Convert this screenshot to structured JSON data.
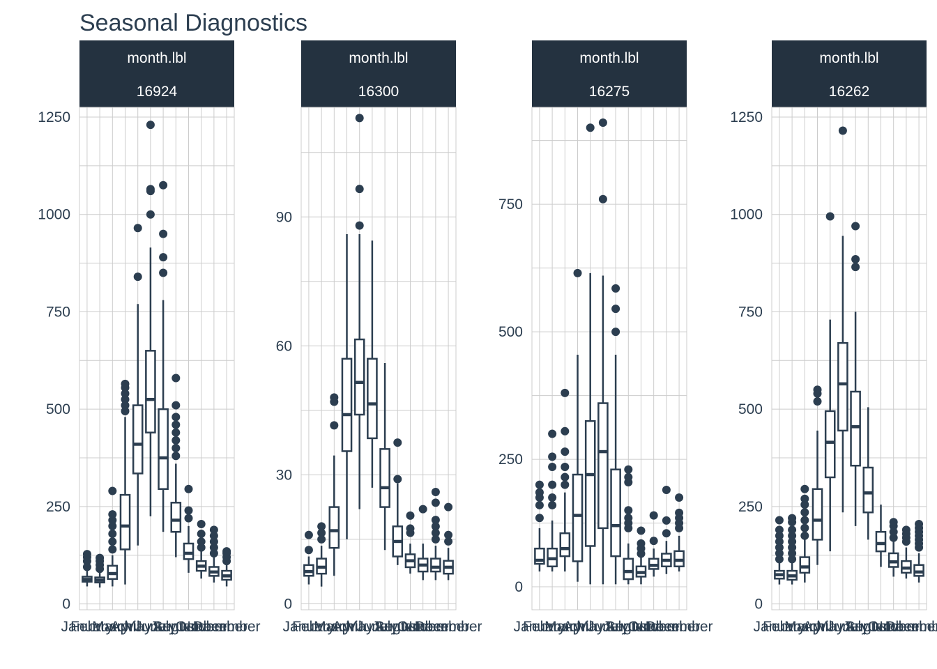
{
  "title": "Seasonal Diagnostics",
  "colors": {
    "ink": "#2c3e50",
    "strip": "#243240",
    "grid": "#cccccc",
    "background": "#ffffff"
  },
  "chart_data": [
    {
      "type": "boxplot",
      "strip": [
        "month.lbl",
        "16924"
      ],
      "ylim": [
        -15,
        1275
      ],
      "yticks": [
        0,
        250,
        500,
        750,
        1000,
        1250
      ],
      "categories": [
        "January",
        "February",
        "March",
        "April",
        "May",
        "June",
        "July",
        "August",
        "September",
        "October",
        "November",
        "December"
      ],
      "boxes": [
        {
          "low": 45,
          "q1": 57,
          "med": 63,
          "q3": 70,
          "high": 85,
          "outliers": [
            95,
            110,
            120,
            128
          ]
        },
        {
          "low": 42,
          "q1": 55,
          "med": 61,
          "q3": 68,
          "high": 82,
          "outliers": [
            90,
            100,
            110,
            118
          ]
        },
        {
          "low": 45,
          "q1": 64,
          "med": 78,
          "q3": 98,
          "high": 125,
          "outliers": [
            140,
            160,
            180,
            200,
            215,
            230,
            290
          ]
        },
        {
          "low": 50,
          "q1": 140,
          "med": 200,
          "q3": 280,
          "high": 480,
          "outliers": [
            495,
            510,
            525,
            540,
            555,
            565
          ]
        },
        {
          "low": 150,
          "q1": 335,
          "med": 410,
          "q3": 510,
          "high": 770,
          "outliers": [
            840,
            965
          ]
        },
        {
          "low": 225,
          "q1": 440,
          "med": 525,
          "q3": 650,
          "high": 915,
          "outliers": [
            1000,
            1060,
            1065,
            1230
          ]
        },
        {
          "low": 185,
          "q1": 295,
          "med": 375,
          "q3": 500,
          "high": 780,
          "outliers": [
            850,
            890,
            950,
            1075
          ]
        },
        {
          "low": 120,
          "q1": 185,
          "med": 215,
          "q3": 260,
          "high": 360,
          "outliers": [
            380,
            400,
            420,
            440,
            460,
            480,
            510,
            580
          ]
        },
        {
          "low": 80,
          "q1": 115,
          "med": 130,
          "q3": 155,
          "high": 200,
          "outliers": [
            220,
            240,
            295
          ]
        },
        {
          "low": 65,
          "q1": 85,
          "med": 97,
          "q3": 110,
          "high": 135,
          "outliers": [
            145,
            160,
            180,
            205
          ]
        },
        {
          "low": 55,
          "q1": 72,
          "med": 82,
          "q3": 95,
          "high": 120,
          "outliers": [
            130,
            145,
            160,
            175,
            190
          ]
        },
        {
          "low": 45,
          "q1": 62,
          "med": 72,
          "q3": 85,
          "high": 105,
          "outliers": [
            110,
            120,
            130,
            135
          ]
        }
      ]
    },
    {
      "type": "boxplot",
      "strip": [
        "month.lbl",
        "16300"
      ],
      "ylim": [
        -1.4,
        115.5
      ],
      "yticks": [
        0,
        30,
        60,
        90
      ],
      "categories": [
        "January",
        "February",
        "March",
        "April",
        "May",
        "June",
        "July",
        "August",
        "September",
        "October",
        "November",
        "December"
      ],
      "boxes": [
        {
          "low": 4.5,
          "q1": 6.5,
          "med": 7.5,
          "q3": 9,
          "high": 11,
          "outliers": [
            12.5,
            16
          ]
        },
        {
          "low": 4,
          "q1": 7,
          "med": 8.5,
          "q3": 10.5,
          "high": 13.5,
          "outliers": [
            15,
            16.5,
            18
          ]
        },
        {
          "low": 6.5,
          "q1": 13,
          "med": 17,
          "q3": 22.5,
          "high": 34.5,
          "outliers": [
            41.5,
            47,
            48
          ]
        },
        {
          "low": 15,
          "q1": 35.5,
          "med": 44,
          "q3": 57,
          "high": 86,
          "outliers": []
        },
        {
          "low": 22,
          "q1": 44,
          "med": 51.5,
          "q3": 61.5,
          "high": 86,
          "outliers": [
            88,
            96.5,
            113
          ]
        },
        {
          "low": 27,
          "q1": 38.5,
          "med": 46.5,
          "q3": 57,
          "high": 84.5,
          "outliers": []
        },
        {
          "low": 12.5,
          "q1": 22.5,
          "med": 27,
          "q3": 36,
          "high": 56,
          "outliers": []
        },
        {
          "low": 9,
          "q1": 11,
          "med": 14.5,
          "q3": 18,
          "high": 28,
          "outliers": [
            29,
            37.5
          ]
        },
        {
          "low": 7,
          "q1": 8.5,
          "med": 10,
          "q3": 11.5,
          "high": 14,
          "outliers": [
            16.5,
            17.5,
            20.5
          ]
        },
        {
          "low": 5.5,
          "q1": 7.5,
          "med": 9,
          "q3": 10.5,
          "high": 14,
          "outliers": [
            22
          ]
        },
        {
          "low": 5.5,
          "q1": 7.5,
          "med": 8.5,
          "q3": 10.5,
          "high": 13.5,
          "outliers": [
            15,
            16.5,
            18,
            19.5,
            23.5,
            26
          ]
        },
        {
          "low": 5.5,
          "q1": 7,
          "med": 8.5,
          "q3": 10,
          "high": 13,
          "outliers": [
            14.5,
            16,
            22.5
          ]
        }
      ]
    },
    {
      "type": "boxplot",
      "strip": [
        "month.lbl",
        "16275"
      ],
      "ylim": [
        -45,
        940
      ],
      "yticks": [
        0,
        250,
        500,
        750
      ],
      "categories": [
        "January",
        "February",
        "March",
        "April",
        "May",
        "June",
        "July",
        "August",
        "September",
        "October",
        "November",
        "December"
      ],
      "boxes": [
        {
          "low": 30,
          "q1": 45,
          "med": 52,
          "q3": 75,
          "high": 115,
          "outliers": [
            135,
            160,
            175,
            185,
            200
          ]
        },
        {
          "low": 30,
          "q1": 40,
          "med": 55,
          "q3": 75,
          "high": 130,
          "outliers": [
            160,
            175,
            200,
            235,
            255,
            300
          ]
        },
        {
          "low": 30,
          "q1": 60,
          "med": 75,
          "q3": 105,
          "high": 185,
          "outliers": [
            200,
            215,
            235,
            265,
            305,
            380
          ]
        },
        {
          "low": 10,
          "q1": 50,
          "med": 140,
          "q3": 220,
          "high": 455,
          "outliers": [
            615
          ]
        },
        {
          "low": 5,
          "q1": 80,
          "med": 220,
          "q3": 325,
          "high": 615,
          "outliers": [
            900
          ]
        },
        {
          "low": 5,
          "q1": 115,
          "med": 265,
          "q3": 360,
          "high": 610,
          "outliers": [
            760,
            910
          ]
        },
        {
          "low": 5,
          "q1": 60,
          "med": 120,
          "q3": 230,
          "high": 455,
          "outliers": [
            500,
            545,
            585
          ]
        },
        {
          "low": 5,
          "q1": 15,
          "med": 30,
          "q3": 55,
          "high": 85,
          "outliers": [
            115,
            125,
            135,
            150,
            205,
            215,
            230
          ]
        },
        {
          "low": 5,
          "q1": 20,
          "med": 28,
          "q3": 40,
          "high": 60,
          "outliers": [
            65,
            75,
            85,
            110
          ]
        },
        {
          "low": 20,
          "q1": 35,
          "med": 42,
          "q3": 55,
          "high": 75,
          "outliers": [
            90,
            140
          ]
        },
        {
          "low": 25,
          "q1": 40,
          "med": 52,
          "q3": 65,
          "high": 90,
          "outliers": [
            105,
            130,
            190
          ]
        },
        {
          "low": 30,
          "q1": 40,
          "med": 52,
          "q3": 70,
          "high": 100,
          "outliers": [
            115,
            125,
            135,
            145,
            175
          ]
        }
      ]
    },
    {
      "type": "boxplot",
      "strip": [
        "month.lbl",
        "16262"
      ],
      "ylim": [
        -15,
        1275
      ],
      "yticks": [
        0,
        250,
        500,
        750,
        1000,
        1250
      ],
      "categories": [
        "January",
        "February",
        "March",
        "April",
        "May",
        "June",
        "July",
        "August",
        "September",
        "October",
        "November",
        "December"
      ],
      "boxes": [
        {
          "low": 50,
          "q1": 65,
          "med": 75,
          "q3": 85,
          "high": 105,
          "outliers": [
            115,
            130,
            145,
            160,
            175,
            190,
            215
          ]
        },
        {
          "low": 50,
          "q1": 62,
          "med": 72,
          "q3": 85,
          "high": 105,
          "outliers": [
            115,
            130,
            145,
            160,
            175,
            190,
            210,
            220
          ]
        },
        {
          "low": 55,
          "q1": 80,
          "med": 95,
          "q3": 120,
          "high": 165,
          "outliers": [
            175,
            195,
            215,
            235,
            255,
            270,
            295
          ]
        },
        {
          "low": 100,
          "q1": 165,
          "med": 215,
          "q3": 295,
          "high": 445,
          "outliers": [
            520,
            540,
            550
          ]
        },
        {
          "low": 135,
          "q1": 325,
          "med": 415,
          "q3": 495,
          "high": 730,
          "outliers": [
            995
          ]
        },
        {
          "low": 235,
          "q1": 445,
          "med": 565,
          "q3": 670,
          "high": 945,
          "outliers": [
            1215
          ]
        },
        {
          "low": 200,
          "q1": 355,
          "med": 455,
          "q3": 545,
          "high": 750,
          "outliers": [
            865,
            885,
            970
          ]
        },
        {
          "low": 165,
          "q1": 235,
          "med": 285,
          "q3": 350,
          "high": 505,
          "outliers": []
        },
        {
          "low": 95,
          "q1": 135,
          "med": 155,
          "q3": 185,
          "high": 255,
          "outliers": []
        },
        {
          "low": 70,
          "q1": 95,
          "med": 108,
          "q3": 130,
          "high": 160,
          "outliers": [
            170,
            185,
            200,
            210
          ]
        },
        {
          "low": 65,
          "q1": 80,
          "med": 92,
          "q3": 110,
          "high": 145,
          "outliers": [
            160,
            170,
            180,
            190
          ]
        },
        {
          "low": 55,
          "q1": 72,
          "med": 82,
          "q3": 100,
          "high": 130,
          "outliers": [
            145,
            155,
            165,
            175,
            185,
            195,
            205
          ]
        }
      ]
    }
  ]
}
